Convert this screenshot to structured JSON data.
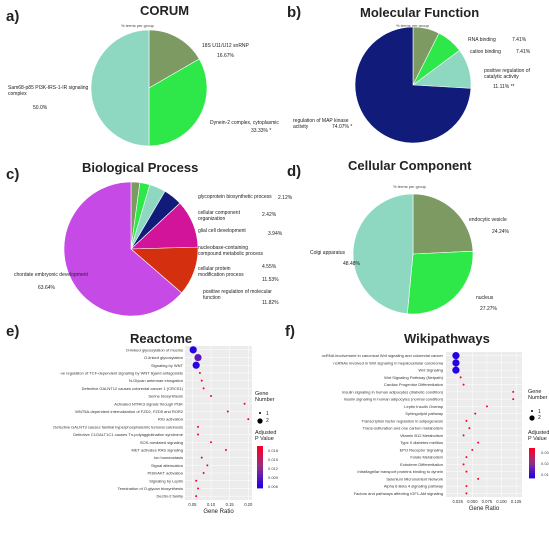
{
  "panels": {
    "a": {
      "letter": "a)",
      "title": "CORUM",
      "subtitle": "% terms per group"
    },
    "b": {
      "letter": "b)",
      "title": "Molecular Function",
      "subtitle": "% terms per group"
    },
    "c": {
      "letter": "c)",
      "title": "Biological Process",
      "subtitle": "% terms per group"
    },
    "d": {
      "letter": "d)",
      "title": "Cellular Component",
      "subtitle": "% terms per group"
    },
    "e": {
      "letter": "e)",
      "title": "Reactome"
    },
    "f": {
      "letter": "f)",
      "title": "Wikipathways"
    }
  },
  "legend": {
    "size_title": "Gene\nNumber",
    "size_values": [
      "1",
      "2"
    ],
    "color_title": "Adjusted\nP Value",
    "e_color_ticks": [
      "0.018",
      "0.015",
      "0.012",
      "0.009",
      "0.006"
    ],
    "f_color_ticks": [
      "0.03",
      "0.02",
      "0.01"
    ]
  },
  "chart_data": [
    {
      "id": "a",
      "type": "pie",
      "slices": [
        {
          "label": "Sam68-p85 PI3K-IRS-1-IR signaling complex",
          "pct_label": "50.0%",
          "value": 50.0,
          "color": "#8ed8c2"
        },
        {
          "label": "18S U11/U12 snRNP",
          "pct_label": "16.67%",
          "value": 16.67,
          "color": "#7c9a62"
        },
        {
          "label": "Dynein-2 complex, cytoplasmic",
          "pct_label": "33.33% *",
          "value": 33.33,
          "color": "#2ee84a"
        }
      ]
    },
    {
      "id": "b",
      "type": "pie",
      "slices": [
        {
          "label": "regulation of MAP kinase activity",
          "pct_label": "74.07% *",
          "value": 74.07,
          "color": "#101b7a"
        },
        {
          "label": "RNA binding",
          "pct_label": "7.41%",
          "value": 7.41,
          "color": "#7c9a62"
        },
        {
          "label": "cation binding",
          "pct_label": "7.41%",
          "value": 7.41,
          "color": "#2ee84a"
        },
        {
          "label": "positive regulation of catalytic activity",
          "pct_label": "11.11% **",
          "value": 11.11,
          "color": "#8ed8c2"
        }
      ]
    },
    {
      "id": "c",
      "type": "pie",
      "slices": [
        {
          "label": "chordate embryonic development",
          "pct_label": "63.64%",
          "value": 63.64,
          "color": "#c54ae6"
        },
        {
          "label": "glycoprotein biosynthetic process",
          "pct_label": "2.12%",
          "value": 2.12,
          "color": "#7c9a62"
        },
        {
          "label": "cellular component organization",
          "pct_label": "2.42%",
          "value": 2.42,
          "color": "#2ee84a"
        },
        {
          "label": "glial cell development",
          "pct_label": "3.94%",
          "value": 3.94,
          "color": "#8ed8c2"
        },
        {
          "label": "nucleobase-containing compound metabolic process",
          "pct_label": "4.55%",
          "value": 4.55,
          "color": "#101b7a"
        },
        {
          "label": "cellular protein modification process",
          "pct_label": "11.53%",
          "value": 11.53,
          "color": "#d2149b"
        },
        {
          "label": "positive regulation of molecular function",
          "pct_label": "11.82%",
          "value": 11.82,
          "color": "#d43010"
        }
      ]
    },
    {
      "id": "d",
      "type": "pie",
      "slices": [
        {
          "label": "Colgi apparatus",
          "pct_label": "48.48%",
          "value": 48.48,
          "color": "#8ed8c2"
        },
        {
          "label": "endocytic vesicle",
          "pct_label": "24.24%",
          "value": 24.24,
          "color": "#7c9a62"
        },
        {
          "label": "nucleus",
          "pct_label": "27.27%",
          "value": 27.27,
          "color": "#2ee84a"
        }
      ]
    },
    {
      "id": "e",
      "type": "scatter",
      "xlabel": "Gene Ratio",
      "x_ticks": [
        "0.05",
        "0.10",
        "0.15",
        "0.20"
      ],
      "xlim": [
        0.03,
        0.21
      ],
      "categories": [
        "O-linked glycosylation of mucins",
        "O-linked glycosylation",
        "Signaling by WNT",
        "-ve regulation of TCF-dependent signaling by WNT ligand antagonists",
        "N-Glycan antennae elongation",
        "Defective GALNT12 causes colorectal cancer 1 (CRCS1)",
        "Serine biosynthesis",
        "Activated NTRK3 signals through PI3K",
        "WNT5A-dependent internalization of FZD2, FZD5 and ROR2",
        "RIG activation",
        "Defective GALNT3 causes familial hyperphosphatemic tumoral calcinosis",
        "Defective C1GALT1C1 causes Tn-polyagglutination syndrome",
        "SOS-mediated signaling",
        "MET activates RAS signaling",
        "Ion homeostasis",
        "Signal attenuation",
        "PI3K/AKT activation",
        "Signaling by Leptin",
        "Termination of O-glycan biosynthesis",
        "Dectin-2 family"
      ],
      "x": [
        0.052,
        0.065,
        0.06,
        0.07,
        0.075,
        0.08,
        0.1,
        0.19,
        0.145,
        0.2,
        0.065,
        0.065,
        0.1,
        0.14,
        0.075,
        0.09,
        0.08,
        0.06,
        0.065,
        0.06
      ],
      "gene_number": [
        2,
        2,
        2,
        1,
        1,
        1,
        1,
        1,
        1,
        1,
        1,
        1,
        1,
        1,
        1,
        1,
        1,
        1,
        1,
        1
      ],
      "padj": [
        0.006,
        0.009,
        0.006,
        0.018,
        0.018,
        0.018,
        0.018,
        0.018,
        0.018,
        0.018,
        0.018,
        0.018,
        0.018,
        0.018,
        0.018,
        0.018,
        0.018,
        0.018,
        0.018,
        0.018
      ]
    },
    {
      "id": "f",
      "type": "scatter",
      "xlabel": "Gene Ratio",
      "x_ticks": [
        "0.025",
        "0.050",
        "0.075",
        "0.100",
        "0.125"
      ],
      "xlim": [
        0.005,
        0.135
      ],
      "categories": [
        "ncRNA involvement in canonical Wnt signaling and colorectal cancer",
        "ncRNAs involved in Wnt signaling in hepatocellular carcinoma",
        "Wnt Signaling",
        "Wnt Signaling Pathway (Netpath)",
        "Cardiac Progenitor Differentiation",
        "Insulin signaling in human adipocytes (diabetic condition)",
        "Insulin signaling in human adipocytes (normal condition)",
        "Leptin Insulin Overlap",
        "Sphingolipid pathway",
        "Transcription factor regulation in adipogenesis",
        "Trans-sulfuration and one carbon metabolism",
        "Vitamin B12 Metabolism",
        "Type II diabetes mellitus",
        "EPO Receptor Signaling",
        "Folate Metabolism",
        "Ectoderm Differentiation",
        "Intraflagellar transport proteins binding to dynein",
        "Selenium Micronutrient Network",
        "Alpha 6 Beta 4 signaling pathway",
        "Factors and pathways affecting IGF1-Akt signaling"
      ],
      "x": [
        0.022,
        0.022,
        0.022,
        0.03,
        0.035,
        0.12,
        0.12,
        0.075,
        0.055,
        0.04,
        0.045,
        0.035,
        0.06,
        0.05,
        0.04,
        0.035,
        0.04,
        0.06,
        0.04,
        0.04
      ],
      "gene_number": [
        2,
        2,
        2,
        1,
        1,
        1,
        1,
        1,
        1,
        1,
        1,
        1,
        1,
        1,
        1,
        1,
        1,
        1,
        1,
        1
      ],
      "padj": [
        0.005,
        0.005,
        0.005,
        0.03,
        0.03,
        0.03,
        0.03,
        0.03,
        0.03,
        0.03,
        0.03,
        0.03,
        0.03,
        0.03,
        0.03,
        0.03,
        0.03,
        0.03,
        0.03,
        0.03
      ]
    }
  ]
}
